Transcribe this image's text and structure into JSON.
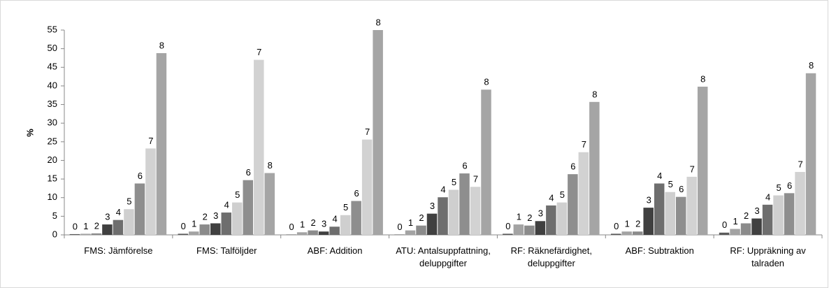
{
  "chart_data": {
    "type": "bar",
    "y_label": "%",
    "categories": [
      "FMS: Jämförelse",
      "FMS: Talföljder",
      "ABF: Addition",
      "ATU: Antalsuppfattning, deluppgifter",
      "RF: Räknefärdighet, deluppgifter",
      "ABF: Subtraktion",
      "RF: Uppräkning av talraden"
    ],
    "series": [
      {
        "name": "0",
        "color": "#5a5a5a",
        "values": [
          0.2,
          0.3,
          0.1,
          0.1,
          0.3,
          0.3,
          0.6
        ]
      },
      {
        "name": "1",
        "color": "#a3a3a3",
        "values": [
          0.3,
          0.9,
          0.7,
          1.2,
          2.8,
          0.9,
          1.6
        ]
      },
      {
        "name": "2",
        "color": "#8b8b8b",
        "values": [
          0.4,
          2.8,
          1.2,
          2.5,
          2.5,
          0.9,
          3.1
        ]
      },
      {
        "name": "3",
        "color": "#404040",
        "values": [
          2.8,
          3.1,
          0.9,
          5.7,
          3.7,
          7.3,
          4.4
        ]
      },
      {
        "name": "4",
        "color": "#6e6e6e",
        "values": [
          4.0,
          6.0,
          2.2,
          10.1,
          7.9,
          13.8,
          8.1
        ]
      },
      {
        "name": "5",
        "color": "#cfcfcf",
        "values": [
          6.9,
          8.7,
          5.3,
          12.1,
          8.7,
          11.5,
          10.6
        ]
      },
      {
        "name": "6",
        "color": "#8e8e8e",
        "values": [
          13.8,
          14.7,
          9.1,
          16.5,
          16.3,
          10.2,
          11.2
        ]
      },
      {
        "name": "7",
        "color": "#d2d2d2",
        "values": [
          23.2,
          47.0,
          25.6,
          12.9,
          22.2,
          15.6,
          16.9
        ]
      },
      {
        "name": "8",
        "color": "#a5a5a5",
        "values": [
          48.8,
          16.6,
          55.0,
          39.0,
          35.7,
          39.8,
          43.4
        ]
      }
    ],
    "ylim": [
      0,
      55
    ],
    "yticks": [
      0,
      5,
      10,
      15,
      20,
      25,
      30,
      35,
      40,
      45,
      50,
      55
    ],
    "grid": false
  }
}
